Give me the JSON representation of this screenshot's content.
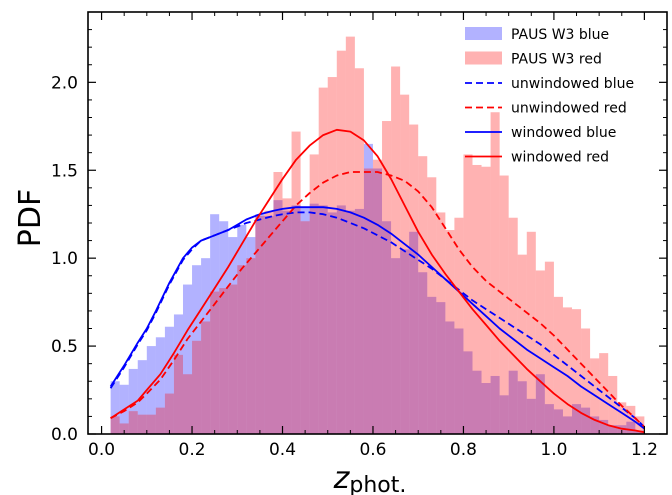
{
  "chart_data": {
    "type": "bar",
    "xlabel_main": "z",
    "xlabel_sub": "phot.",
    "ylabel": "PDF",
    "xlim": [
      -0.03,
      1.25
    ],
    "ylim": [
      0.0,
      2.4
    ],
    "xticks": [
      "0.0",
      "0.2",
      "0.4",
      "0.6",
      "0.8",
      "1.0",
      "1.2"
    ],
    "xtick_values": [
      0.0,
      0.2,
      0.4,
      0.6,
      0.8,
      1.0,
      1.2
    ],
    "yticks": [
      "0.0",
      "0.5",
      "1.0",
      "1.5",
      "2.0"
    ],
    "ytick_values": [
      0.0,
      0.5,
      1.0,
      1.5,
      2.0
    ],
    "grid": false,
    "legend_position": "top-right",
    "bin_width": 0.02,
    "bin_start": 0.02,
    "histograms": [
      {
        "name": "PAUS W3 blue",
        "color": "#0000ff",
        "alpha": 0.3,
        "values": [
          0.3,
          0.28,
          0.37,
          0.42,
          0.5,
          0.55,
          0.61,
          0.68,
          0.85,
          0.96,
          1.0,
          1.25,
          1.21,
          1.12,
          1.19,
          1.12,
          1.25,
          1.24,
          1.33,
          1.27,
          1.3,
          1.29,
          1.31,
          1.3,
          1.26,
          1.3,
          1.27,
          1.28,
          1.65,
          1.51,
          1.21,
          1.0,
          1.05,
          1.15,
          0.92,
          0.78,
          0.75,
          0.64,
          0.6,
          0.47,
          0.36,
          0.29,
          0.33,
          0.22,
          0.36,
          0.3,
          0.2,
          0.34,
          0.17,
          0.14,
          0.1,
          0.17,
          0.15,
          0.1,
          0.08,
          0.05,
          0.05,
          0.07,
          0.02
        ]
      },
      {
        "name": "PAUS W3 red",
        "color": "#ff0000",
        "alpha": 0.3,
        "values": [
          0.1,
          0.06,
          0.13,
          0.11,
          0.11,
          0.15,
          0.23,
          0.45,
          0.34,
          0.53,
          0.64,
          0.81,
          0.83,
          0.85,
          0.96,
          1.0,
          1.24,
          1.27,
          1.49,
          1.34,
          1.72,
          1.21,
          1.59,
          1.97,
          2.03,
          2.18,
          2.26,
          2.08,
          1.51,
          1.56,
          1.78,
          2.09,
          1.93,
          1.76,
          1.58,
          1.46,
          1.26,
          1.16,
          1.23,
          1.59,
          1.53,
          1.52,
          1.83,
          1.47,
          1.23,
          1.02,
          1.15,
          0.93,
          0.98,
          0.78,
          0.72,
          0.71,
          0.6,
          0.43,
          0.46,
          0.33,
          0.18,
          0.16,
          0.1
        ]
      }
    ],
    "series": [
      {
        "name": "unwindowed blue",
        "color": "#0000ff",
        "style": "dashed",
        "x": [
          0.02,
          0.05,
          0.08,
          0.1,
          0.12,
          0.15,
          0.18,
          0.2,
          0.22,
          0.25,
          0.28,
          0.3,
          0.32,
          0.35,
          0.38,
          0.4,
          0.43,
          0.46,
          0.49,
          0.52,
          0.55,
          0.58,
          0.61,
          0.64,
          0.67,
          0.7,
          0.73,
          0.76,
          0.79,
          0.82,
          0.85,
          0.88,
          0.91,
          0.94,
          0.97,
          1.0,
          1.03,
          1.06,
          1.09,
          1.12,
          1.15,
          1.18,
          1.2
        ],
        "y": [
          0.26,
          0.38,
          0.51,
          0.59,
          0.69,
          0.85,
          0.99,
          1.05,
          1.1,
          1.13,
          1.16,
          1.18,
          1.2,
          1.22,
          1.24,
          1.25,
          1.26,
          1.26,
          1.25,
          1.23,
          1.2,
          1.17,
          1.13,
          1.09,
          1.04,
          0.99,
          0.94,
          0.88,
          0.82,
          0.76,
          0.71,
          0.66,
          0.61,
          0.56,
          0.51,
          0.45,
          0.39,
          0.33,
          0.27,
          0.21,
          0.15,
          0.09,
          0.04
        ]
      },
      {
        "name": "unwindowed red",
        "color": "#ff0000",
        "style": "dashed",
        "x": [
          0.02,
          0.05,
          0.08,
          0.1,
          0.13,
          0.16,
          0.19,
          0.22,
          0.25,
          0.28,
          0.31,
          0.34,
          0.37,
          0.4,
          0.43,
          0.46,
          0.49,
          0.52,
          0.55,
          0.58,
          0.61,
          0.64,
          0.67,
          0.7,
          0.73,
          0.76,
          0.79,
          0.82,
          0.85,
          0.88,
          0.91,
          0.94,
          0.97,
          1.0,
          1.03,
          1.06,
          1.09,
          1.12,
          1.15,
          1.18,
          1.2
        ],
        "y": [
          0.09,
          0.13,
          0.18,
          0.23,
          0.31,
          0.42,
          0.54,
          0.64,
          0.74,
          0.84,
          0.94,
          1.03,
          1.12,
          1.21,
          1.3,
          1.37,
          1.43,
          1.47,
          1.49,
          1.49,
          1.49,
          1.47,
          1.44,
          1.38,
          1.29,
          1.17,
          1.05,
          0.95,
          0.87,
          0.81,
          0.75,
          0.69,
          0.63,
          0.56,
          0.48,
          0.4,
          0.32,
          0.24,
          0.16,
          0.09,
          0.04
        ]
      },
      {
        "name": "windowed blue",
        "color": "#0000ff",
        "style": "solid",
        "x": [
          0.02,
          0.05,
          0.08,
          0.1,
          0.12,
          0.15,
          0.18,
          0.2,
          0.22,
          0.25,
          0.28,
          0.3,
          0.32,
          0.35,
          0.38,
          0.4,
          0.43,
          0.46,
          0.49,
          0.52,
          0.55,
          0.58,
          0.61,
          0.64,
          0.67,
          0.7,
          0.73,
          0.76,
          0.79,
          0.82,
          0.85,
          0.88,
          0.91,
          0.94,
          0.97,
          1.0,
          1.03,
          1.06,
          1.09,
          1.12,
          1.15,
          1.18,
          1.2
        ],
        "y": [
          0.27,
          0.39,
          0.52,
          0.6,
          0.7,
          0.86,
          1.0,
          1.06,
          1.1,
          1.13,
          1.16,
          1.19,
          1.22,
          1.25,
          1.27,
          1.28,
          1.29,
          1.29,
          1.29,
          1.28,
          1.26,
          1.23,
          1.19,
          1.14,
          1.08,
          1.02,
          0.95,
          0.88,
          0.81,
          0.74,
          0.67,
          0.6,
          0.54,
          0.48,
          0.43,
          0.38,
          0.33,
          0.27,
          0.22,
          0.17,
          0.12,
          0.07,
          0.03
        ]
      },
      {
        "name": "windowed red",
        "color": "#ff0000",
        "style": "solid",
        "x": [
          0.02,
          0.05,
          0.08,
          0.1,
          0.13,
          0.16,
          0.19,
          0.22,
          0.25,
          0.28,
          0.31,
          0.34,
          0.37,
          0.4,
          0.43,
          0.46,
          0.49,
          0.52,
          0.55,
          0.58,
          0.61,
          0.64,
          0.67,
          0.7,
          0.73,
          0.76,
          0.79,
          0.82,
          0.85,
          0.88,
          0.91,
          0.94,
          0.97,
          1.0,
          1.03,
          1.06,
          1.09,
          1.12,
          1.15,
          1.18,
          1.2
        ],
        "y": [
          0.09,
          0.14,
          0.19,
          0.25,
          0.34,
          0.46,
          0.59,
          0.71,
          0.83,
          0.95,
          1.08,
          1.21,
          1.33,
          1.45,
          1.56,
          1.64,
          1.7,
          1.73,
          1.72,
          1.67,
          1.58,
          1.45,
          1.3,
          1.15,
          1.02,
          0.91,
          0.81,
          0.71,
          0.62,
          0.53,
          0.45,
          0.37,
          0.3,
          0.23,
          0.17,
          0.12,
          0.08,
          0.05,
          0.03,
          0.02,
          0.01
        ]
      }
    ],
    "legend": [
      {
        "label": "PAUS W3 blue",
        "kind": "patch",
        "color": "#0000ff"
      },
      {
        "label": "PAUS W3 red",
        "kind": "patch",
        "color": "#ff0000"
      },
      {
        "label": "unwindowed blue",
        "kind": "dashed",
        "color": "#0000ff"
      },
      {
        "label": "unwindowed red",
        "kind": "dashed",
        "color": "#ff0000"
      },
      {
        "label": "windowed blue",
        "kind": "solid",
        "color": "#0000ff"
      },
      {
        "label": "windowed red",
        "kind": "solid",
        "color": "#ff0000"
      }
    ]
  }
}
